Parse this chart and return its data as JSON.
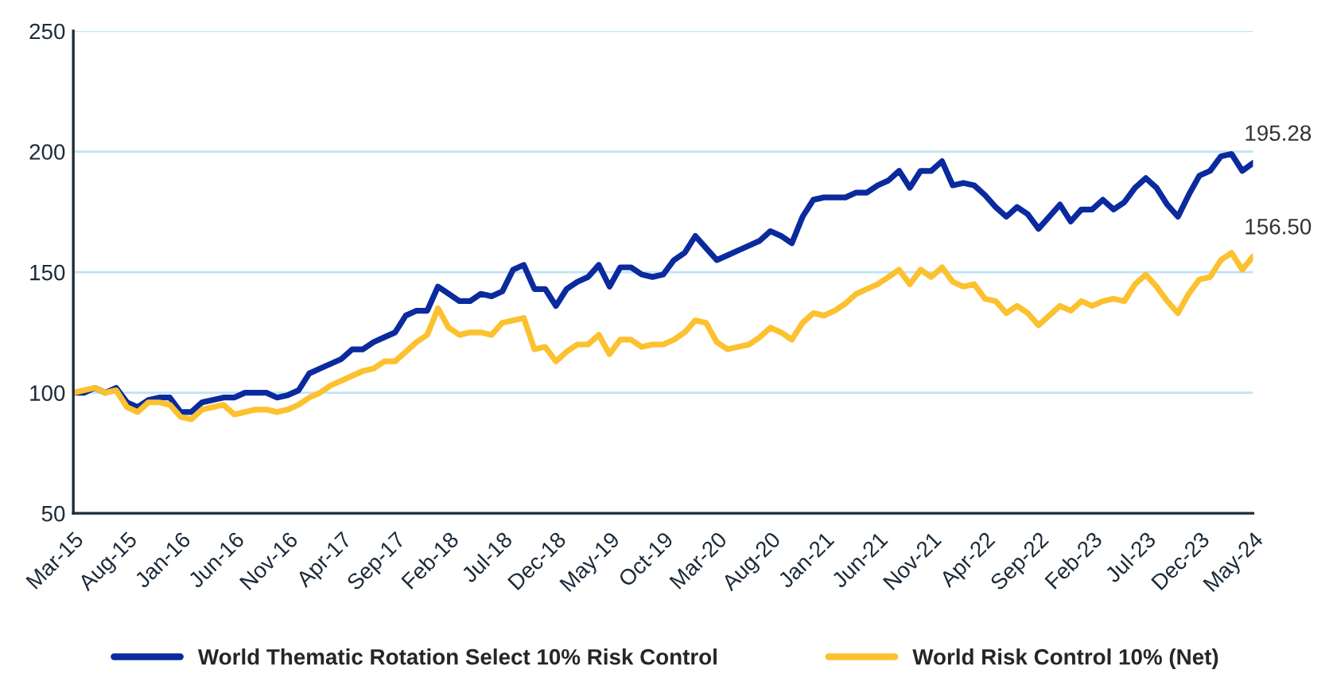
{
  "chart_data": {
    "type": "line",
    "categories": [
      "Mar-15",
      null,
      null,
      null,
      null,
      "Aug-15",
      null,
      null,
      null,
      null,
      "Jan-16",
      null,
      null,
      null,
      null,
      "Jun-16",
      null,
      null,
      null,
      null,
      "Nov-16",
      null,
      null,
      null,
      null,
      "Apr-17",
      null,
      null,
      null,
      null,
      "Sep-17",
      null,
      null,
      null,
      null,
      "Feb-18",
      null,
      null,
      null,
      null,
      "Jul-18",
      null,
      null,
      null,
      null,
      "Dec-18",
      null,
      null,
      null,
      null,
      "May-19",
      null,
      null,
      null,
      null,
      "Oct-19",
      null,
      null,
      null,
      null,
      "Mar-20",
      null,
      null,
      null,
      null,
      "Aug-20",
      null,
      null,
      null,
      null,
      "Jan-21",
      null,
      null,
      null,
      null,
      "Jun-21",
      null,
      null,
      null,
      null,
      "Nov-21",
      null,
      null,
      null,
      null,
      "Apr-22",
      null,
      null,
      null,
      null,
      "Sep-22",
      null,
      null,
      null,
      null,
      "Feb-23",
      null,
      null,
      null,
      null,
      "Jul-23",
      null,
      null,
      null,
      null,
      "Dec-23",
      null,
      null,
      null,
      null,
      "May-24"
    ],
    "series": [
      {
        "name": "World Thematic Rotation Select 10% Risk Control",
        "color": "#0a2a9e",
        "values": [
          100,
          100,
          102,
          100,
          102,
          96,
          94,
          97,
          98,
          98,
          92,
          92,
          96,
          97,
          98,
          98,
          100,
          100,
          100,
          98,
          99,
          101,
          108,
          110,
          112,
          114,
          118,
          118,
          121,
          123,
          125,
          132,
          134,
          134,
          144,
          141,
          138,
          138,
          141,
          140,
          142,
          151,
          153,
          143,
          143,
          136,
          143,
          146,
          148,
          153,
          144,
          152,
          152,
          149,
          148,
          149,
          155,
          158,
          165,
          160,
          155,
          157,
          159,
          161,
          163,
          167,
          165,
          162,
          173,
          180,
          181,
          181,
          181,
          183,
          183,
          186,
          188,
          192,
          185,
          192,
          192,
          196,
          186,
          187,
          186,
          182,
          177,
          173,
          177,
          174,
          168,
          173,
          178,
          171,
          176,
          176,
          180,
          176,
          179,
          185,
          189,
          185,
          178,
          173,
          182,
          190,
          192,
          198,
          199,
          192,
          195.28
        ],
        "value_labels": [
          null,
          null,
          null,
          null,
          null,
          null,
          null,
          null,
          null,
          null,
          null,
          null,
          null,
          null,
          null,
          null,
          null,
          null,
          null,
          null,
          null,
          null,
          null,
          null,
          null,
          null,
          null,
          null,
          null,
          null,
          null,
          null,
          null,
          null,
          null,
          null,
          null,
          null,
          null,
          null,
          null,
          null,
          null,
          null,
          null,
          null,
          null,
          null,
          null,
          null,
          null,
          null,
          null,
          null,
          null,
          null,
          null,
          null,
          null,
          null,
          null,
          null,
          null,
          null,
          null,
          null,
          null,
          null,
          null,
          null,
          null,
          null,
          null,
          null,
          null,
          null,
          null,
          null,
          null,
          null,
          null,
          null,
          null,
          null,
          null,
          null,
          null,
          null,
          null,
          null,
          null,
          null,
          null,
          null,
          null,
          null,
          null,
          null,
          null,
          null,
          null,
          null,
          null,
          null,
          null,
          null,
          null,
          null,
          null,
          null,
          "195.28"
        ]
      },
      {
        "name": "World Risk Control 10% (Net)",
        "color": "#fcc12f",
        "values": [
          100,
          101,
          102,
          100,
          101,
          94,
          92,
          96,
          96,
          95,
          90,
          89,
          93,
          94,
          95,
          91,
          92,
          93,
          93,
          92,
          93,
          95,
          98,
          100,
          103,
          105,
          107,
          109,
          110,
          113,
          113,
          117,
          121,
          124,
          135,
          127,
          124,
          125,
          125,
          124,
          129,
          130,
          131,
          118,
          119,
          113,
          117,
          120,
          120,
          124,
          116,
          122,
          122,
          119,
          120,
          120,
          122,
          125,
          130,
          129,
          121,
          118,
          119,
          120,
          123,
          127,
          125,
          122,
          129,
          133,
          132,
          134,
          137,
          141,
          143,
          145,
          148,
          151,
          145,
          151,
          148,
          152,
          146,
          144,
          145,
          139,
          138,
          133,
          136,
          133,
          128,
          132,
          136,
          134,
          138,
          136,
          138,
          139,
          138,
          145,
          149,
          144,
          138,
          133,
          141,
          147,
          148,
          155,
          158,
          151,
          156.5
        ],
        "value_labels": [
          null,
          null,
          null,
          null,
          null,
          null,
          null,
          null,
          null,
          null,
          null,
          null,
          null,
          null,
          null,
          null,
          null,
          null,
          null,
          null,
          null,
          null,
          null,
          null,
          null,
          null,
          null,
          null,
          null,
          null,
          null,
          null,
          null,
          null,
          null,
          null,
          null,
          null,
          null,
          null,
          null,
          null,
          null,
          null,
          null,
          null,
          null,
          null,
          null,
          null,
          null,
          null,
          null,
          null,
          null,
          null,
          null,
          null,
          null,
          null,
          null,
          null,
          null,
          null,
          null,
          null,
          null,
          null,
          null,
          null,
          null,
          null,
          null,
          null,
          null,
          null,
          null,
          null,
          null,
          null,
          null,
          null,
          null,
          null,
          null,
          null,
          null,
          null,
          null,
          null,
          null,
          null,
          null,
          null,
          null,
          null,
          null,
          null,
          null,
          null,
          null,
          null,
          null,
          null,
          null,
          null,
          null,
          null,
          null,
          null,
          "156.50"
        ]
      }
    ],
    "ylim": [
      50,
      250
    ],
    "yticks": [
      50,
      100,
      150,
      200,
      250
    ],
    "grid": "y",
    "legend": "bottom",
    "marker": "none",
    "line_style": "solid"
  }
}
